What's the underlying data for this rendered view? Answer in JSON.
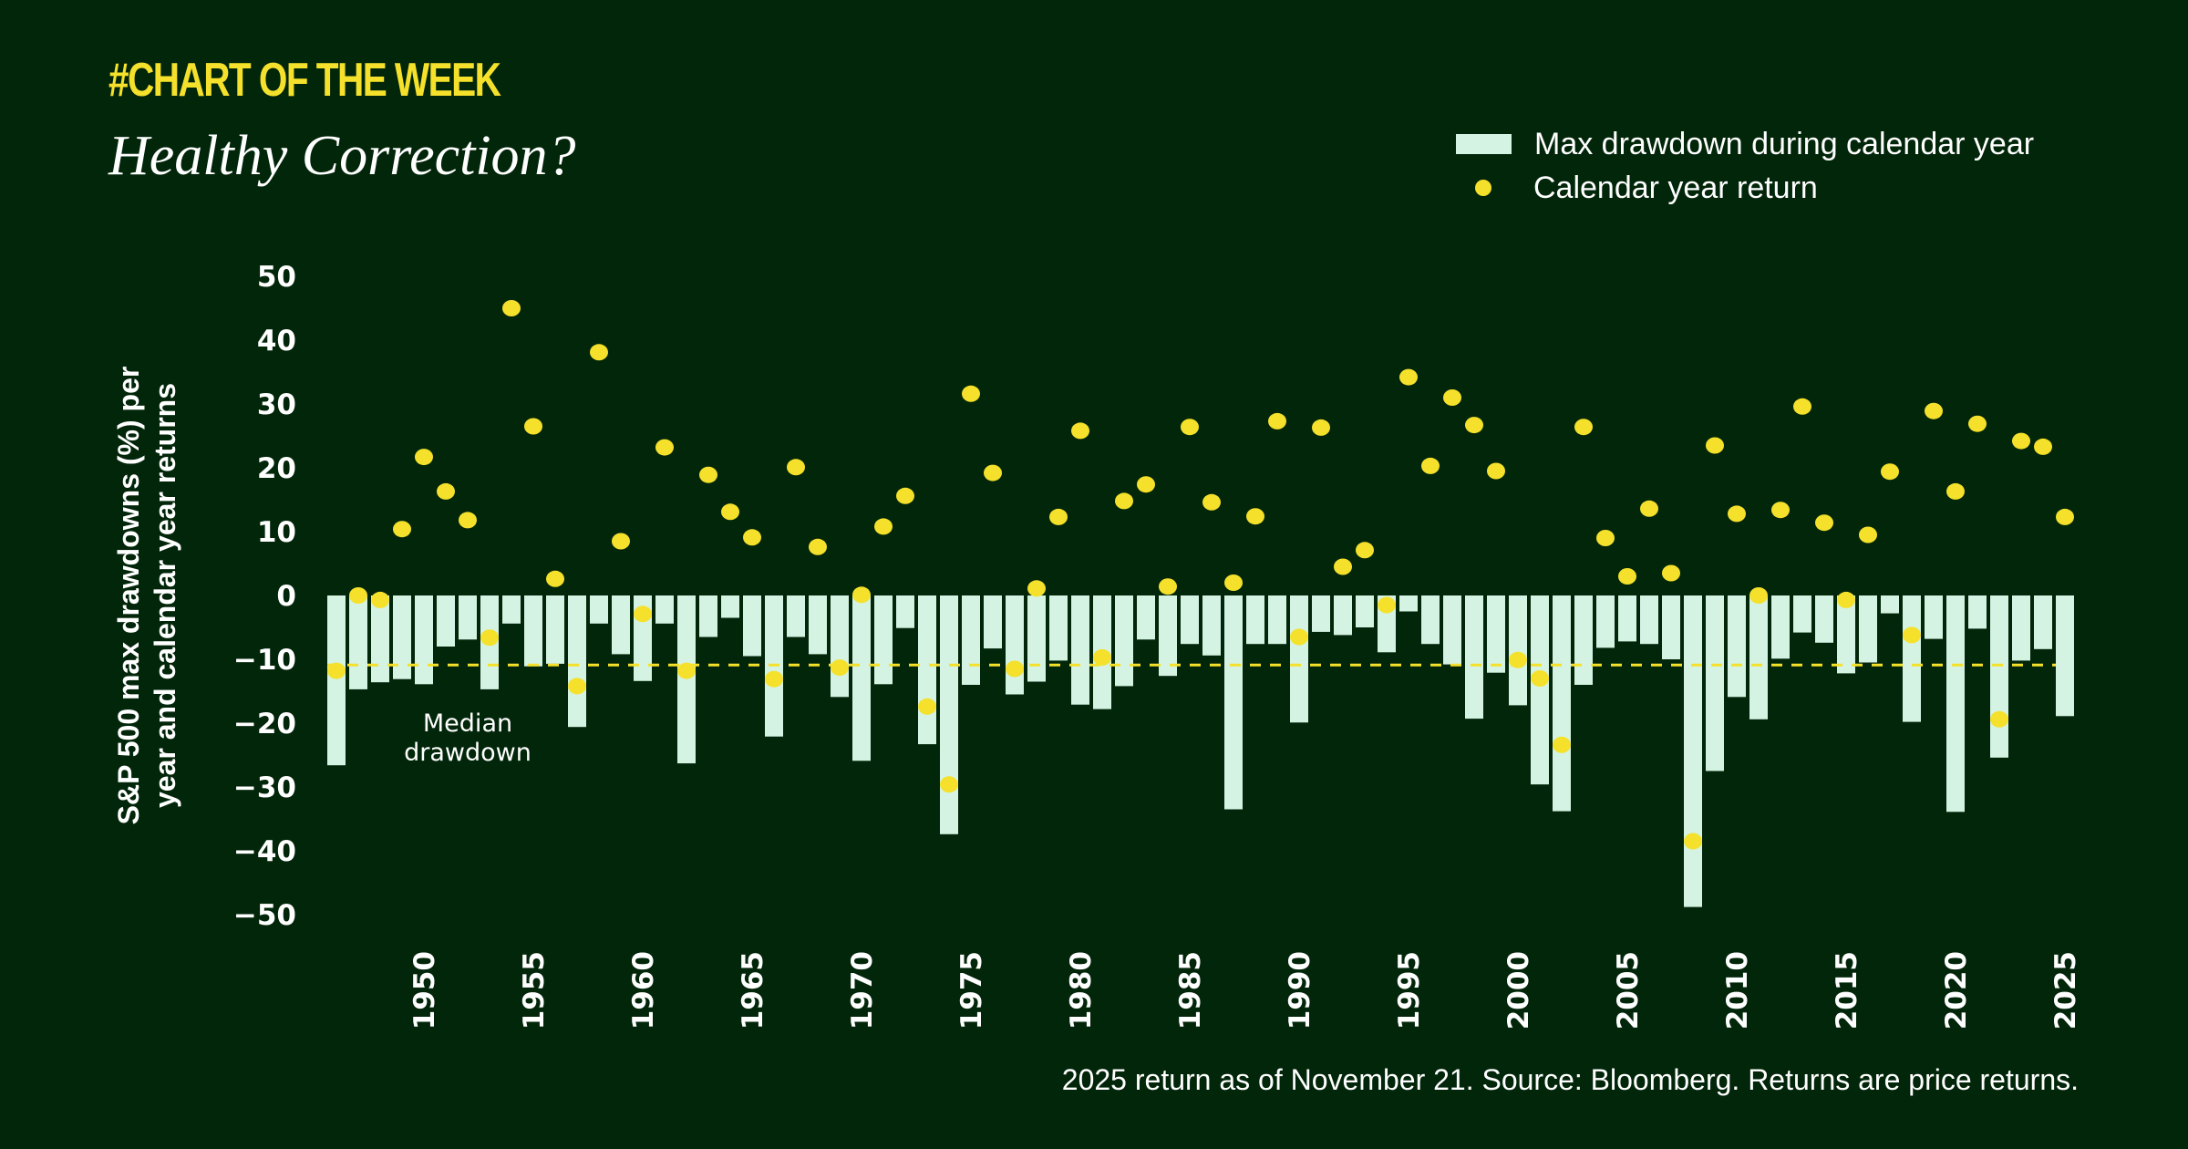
{
  "header": {
    "kicker": "#CHART OF THE WEEK",
    "title": "Healthy Correction?"
  },
  "legend": {
    "bar_label": "Max drawdown during calendar year",
    "dot_label": "Calendar year return"
  },
  "footnote": "2025 return as of November 21. Source: Bloomberg. Returns are price returns.",
  "colors": {
    "background": "#02260a",
    "bar": "#d4f3e2",
    "dot": "#f5e12b",
    "median_line": "#f5e12b",
    "text": "#ffffff"
  },
  "chart_data": {
    "type": "bar",
    "ylabel_lines": [
      "S&P 500 max drawdowns (%) per",
      "year and calendar year returns"
    ],
    "ylim": [
      -50,
      50
    ],
    "yticks": [
      50,
      40,
      30,
      20,
      10,
      0,
      -10,
      -20,
      -30,
      -40,
      -50
    ],
    "ytick_labels": [
      "50",
      "40",
      "30",
      "20",
      "10",
      "0",
      "−10",
      "−20",
      "−30",
      "−40",
      "−50"
    ],
    "xtick_labels": [
      "1950",
      "1955",
      "1960",
      "1965",
      "1970",
      "1975",
      "1980",
      "1985",
      "1990",
      "1995",
      "2000",
      "2005",
      "2010",
      "2015",
      "2020",
      "2025"
    ],
    "grid": false,
    "legend_position": "top-right",
    "x": [
      1946,
      1947,
      1948,
      1949,
      1950,
      1951,
      1952,
      1953,
      1954,
      1955,
      1956,
      1957,
      1958,
      1959,
      1960,
      1961,
      1962,
      1963,
      1964,
      1965,
      1966,
      1967,
      1968,
      1969,
      1970,
      1971,
      1972,
      1973,
      1974,
      1975,
      1976,
      1977,
      1978,
      1979,
      1980,
      1981,
      1982,
      1983,
      1984,
      1985,
      1986,
      1987,
      1988,
      1989,
      1990,
      1991,
      1992,
      1993,
      1994,
      1995,
      1996,
      1997,
      1998,
      1999,
      2000,
      2001,
      2002,
      2003,
      2004,
      2005,
      2006,
      2007,
      2008,
      2009,
      2010,
      2011,
      2012,
      2013,
      2014,
      2015,
      2016,
      2017,
      2018,
      2019,
      2020,
      2021,
      2022,
      2023,
      2024,
      2025
    ],
    "series": [
      {
        "name": "Max drawdown during calendar year",
        "type": "bar",
        "values": [
          -26.6,
          -14.7,
          -13.6,
          -13.1,
          -13.9,
          -8.0,
          -6.9,
          -14.7,
          -4.4,
          -11.1,
          -10.7,
          -20.6,
          -4.4,
          -9.2,
          -13.4,
          -4.4,
          -26.3,
          -6.5,
          -3.5,
          -9.5,
          -22.1,
          -6.5,
          -9.2,
          -15.9,
          -25.9,
          -13.9,
          -5.1,
          -23.3,
          -37.4,
          -14.0,
          -8.3,
          -15.5,
          -13.5,
          -10.2,
          -17.1,
          -17.8,
          -14.2,
          -6.9,
          -12.6,
          -7.6,
          -9.4,
          -33.5,
          -7.6,
          -7.6,
          -19.9,
          -5.7,
          -6.2,
          -5.0,
          -8.9,
          -2.5,
          -7.6,
          -10.8,
          -19.3,
          -12.1,
          -17.2,
          -29.6,
          -33.8,
          -14.0,
          -8.2,
          -7.2,
          -7.6,
          -10.0,
          -48.8,
          -27.5,
          -15.9,
          -19.4,
          -9.9,
          -5.8,
          -7.4,
          -12.2,
          -10.5,
          -2.8,
          -19.8,
          -6.8,
          -33.9,
          -5.2,
          -25.4,
          -10.2,
          -8.4,
          -18.9
        ]
      },
      {
        "name": "Calendar year return",
        "type": "scatter",
        "values": [
          -11.8,
          0.0,
          -0.7,
          10.4,
          21.7,
          16.3,
          11.8,
          -6.6,
          45.0,
          26.5,
          2.6,
          -14.2,
          38.1,
          8.5,
          -2.9,
          23.2,
          -11.8,
          18.9,
          13.1,
          9.1,
          -13.1,
          20.1,
          7.6,
          -11.3,
          0.1,
          10.8,
          15.6,
          -17.4,
          -29.6,
          31.6,
          19.2,
          -11.5,
          1.1,
          12.3,
          25.8,
          -9.7,
          14.8,
          17.4,
          1.4,
          26.4,
          14.6,
          2.0,
          12.4,
          27.3,
          -6.5,
          26.3,
          4.5,
          7.1,
          -1.5,
          34.2,
          20.3,
          31.0,
          26.7,
          19.5,
          -10.1,
          -13.0,
          -23.4,
          26.4,
          9.0,
          3.0,
          13.6,
          3.5,
          -38.5,
          23.5,
          12.8,
          0.0,
          13.4,
          29.6,
          11.4,
          -0.7,
          9.5,
          19.4,
          -6.2,
          28.9,
          16.3,
          26.9,
          -19.4,
          24.2,
          23.3,
          12.3
        ]
      }
    ],
    "median_drawdown": -10.9,
    "annotation": [
      "Median",
      "drawdown"
    ]
  }
}
